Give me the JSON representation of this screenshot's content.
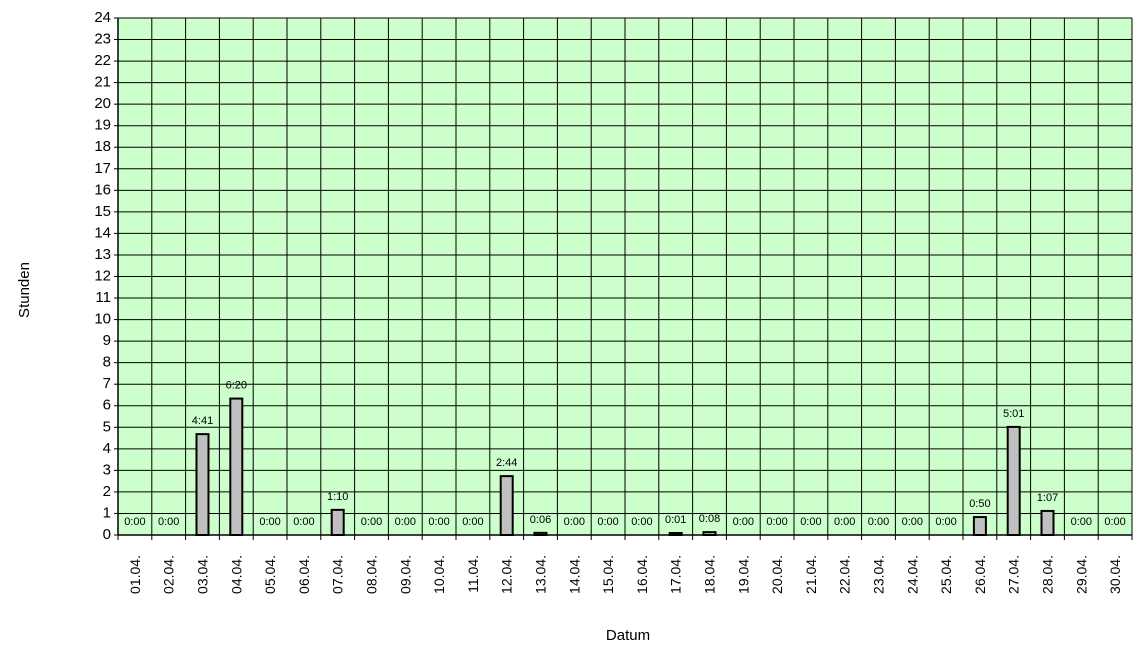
{
  "chart_data": {
    "type": "bar",
    "xlabel": "Datum",
    "ylabel": "Stunden",
    "ylim": [
      0,
      24
    ],
    "yticks": [
      "0",
      "1",
      "2",
      "3",
      "4",
      "5",
      "6",
      "7",
      "8",
      "9",
      "10",
      "11",
      "12",
      "13",
      "14",
      "15",
      "16",
      "17",
      "18",
      "19",
      "20",
      "21",
      "22",
      "23",
      "24"
    ],
    "grid": true,
    "colors": {
      "plot_bg": "#ccffcc",
      "bar_fill": "#c0c0c0",
      "grid": "#000000"
    },
    "categories": [
      "01.04.",
      "02.04.",
      "03.04.",
      "04.04.",
      "05.04.",
      "06.04.",
      "07.04.",
      "08.04.",
      "09.04.",
      "10.04.",
      "11.04.",
      "12.04.",
      "13.04.",
      "14.04.",
      "15.04.",
      "16.04.",
      "17.04.",
      "18.04.",
      "19.04.",
      "20.04.",
      "21.04.",
      "22.04.",
      "23.04.",
      "24.04.",
      "25.04.",
      "26.04.",
      "27.04.",
      "28.04.",
      "29.04.",
      "30.04."
    ],
    "values": [
      0,
      0,
      4.683,
      6.333,
      0,
      0,
      1.167,
      0,
      0,
      0,
      0,
      2.733,
      0.1,
      0,
      0,
      0,
      0.017,
      0.133,
      0,
      0,
      0,
      0,
      0,
      0,
      0,
      0.833,
      5.017,
      1.117,
      0,
      0
    ],
    "data_labels": [
      "0:00",
      "0:00",
      "4:41",
      "6:20",
      "0:00",
      "0:00",
      "1:10",
      "0:00",
      "0:00",
      "0:00",
      "0:00",
      "2:44",
      "0:06",
      "0:00",
      "0:00",
      "0:00",
      "0:01",
      "0:08",
      "0:00",
      "0:00",
      "0:00",
      "0:00",
      "0:00",
      "0:00",
      "0:00",
      "0:50",
      "5:01",
      "1:07",
      "0:00",
      "0:00"
    ]
  }
}
